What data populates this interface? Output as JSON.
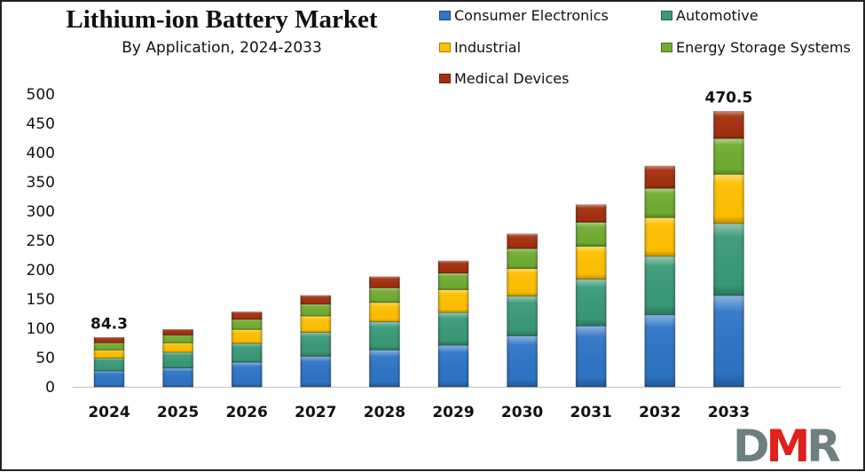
{
  "chart_data": {
    "type": "bar",
    "stacked": true,
    "title": "Lithium-ion Battery Market",
    "subtitle": "By Application, 2024-2033",
    "xlabel": "",
    "ylabel": "",
    "ylim": [
      0,
      500
    ],
    "yticks": [
      0,
      50,
      100,
      150,
      200,
      250,
      300,
      350,
      400,
      450,
      500
    ],
    "grid": false,
    "legend_position": "top-right",
    "categories": [
      "2024",
      "2025",
      "2026",
      "2027",
      "2028",
      "2029",
      "2030",
      "2031",
      "2032",
      "2033"
    ],
    "series": [
      {
        "name": "Consumer Electronics",
        "color": "#2E75C6",
        "values": [
          27,
          32,
          42,
          52,
          63,
          71,
          87,
          104,
          123,
          156
        ]
      },
      {
        "name": "Automotive",
        "color": "#3A9A78",
        "values": [
          22,
          27,
          32,
          41,
          48,
          56,
          68,
          80,
          100,
          123
        ]
      },
      {
        "name": "Industrial",
        "color": "#FFC000",
        "values": [
          14,
          16,
          24,
          28,
          33,
          39,
          47,
          56,
          66,
          84
        ]
      },
      {
        "name": "Energy Storage Systems",
        "color": "#70AD32",
        "values": [
          12,
          13,
          17,
          20,
          25,
          28,
          34,
          41,
          50,
          61
        ]
      },
      {
        "name": "Medical Devices",
        "color": "#A5300F",
        "values": [
          9.3,
          10,
          13,
          15,
          19,
          21,
          25,
          30,
          38,
          46.5
        ]
      }
    ],
    "totals": [
      84.3,
      98,
      128,
      156,
      188,
      215,
      261,
      311,
      377,
      470.5
    ],
    "annotations": [
      {
        "category": "2024",
        "text": "84.3"
      },
      {
        "category": "2033",
        "text": "470.5"
      }
    ]
  },
  "logo": {
    "letters": [
      "D",
      "M",
      "R"
    ],
    "colors": [
      "#6E7F80",
      "#E0201B",
      "#6E7F80"
    ]
  }
}
